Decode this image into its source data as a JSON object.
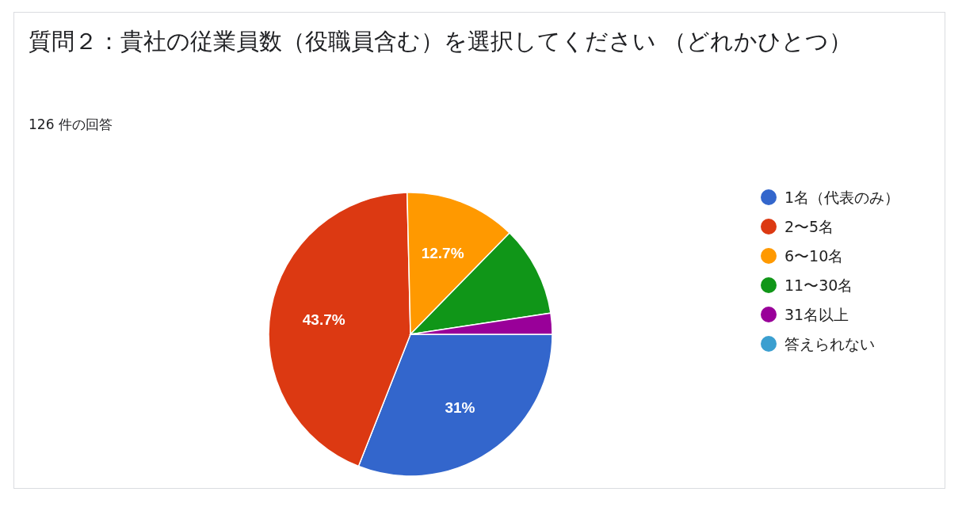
{
  "chart_data": {
    "type": "pie",
    "title": "質問２：貴社の従業員数（役職員含む）を選択してください （どれかひとつ）",
    "subtitle": "126 件の回答",
    "categories": [
      "1名（代表のみ）",
      "2〜5名",
      "6〜10名",
      "11〜30名",
      "31名以上",
      "答えられない"
    ],
    "values": [
      31,
      43.7,
      12.7,
      10.3,
      2.4,
      0
    ],
    "colors": [
      "#3366cc",
      "#dc3912",
      "#ff9900",
      "#109618",
      "#990099",
      "#3b9fd0"
    ],
    "value_labels": [
      "31%",
      "43.7%",
      "12.7%",
      null,
      null,
      null
    ],
    "legend": "right"
  }
}
